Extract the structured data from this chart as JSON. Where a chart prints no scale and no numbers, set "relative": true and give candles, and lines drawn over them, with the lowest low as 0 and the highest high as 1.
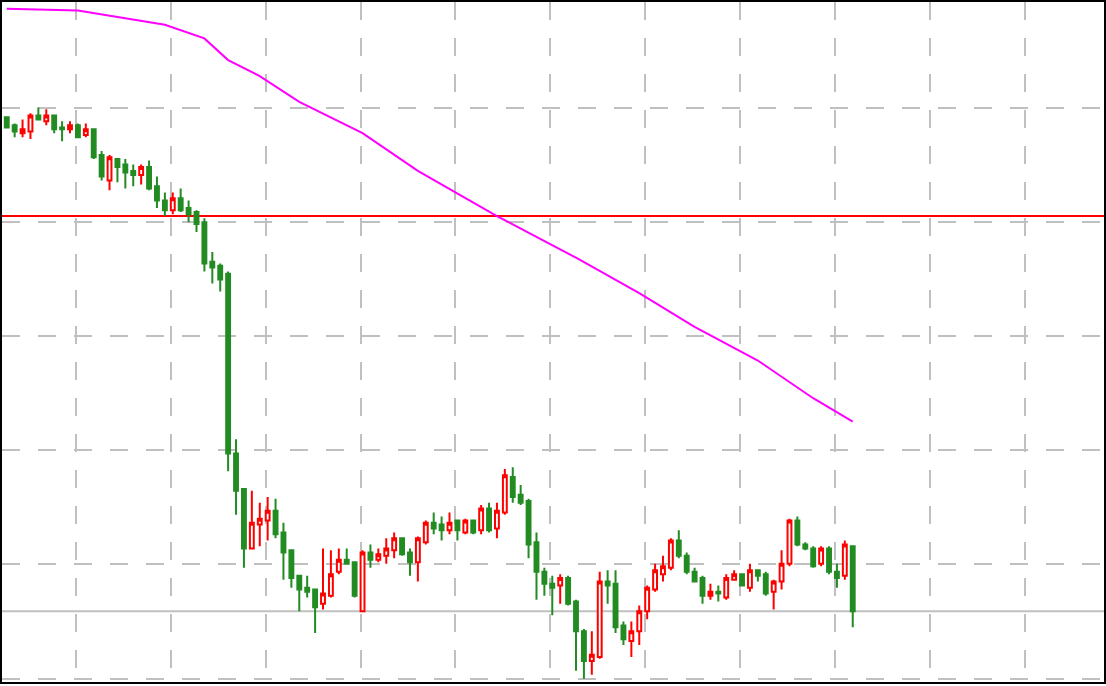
{
  "chart_data": {
    "type": "candlestick",
    "relative": true,
    "grid": true,
    "categories": [
      null,
      null,
      null,
      null,
      null,
      null,
      null,
      null,
      null,
      null,
      null,
      null,
      null,
      null,
      null,
      null,
      null,
      null,
      null,
      null,
      null,
      null,
      null,
      null,
      null,
      null,
      null,
      null,
      null,
      null,
      null,
      null,
      null,
      null,
      null,
      null,
      null,
      null,
      null,
      null,
      null,
      null,
      null,
      null,
      null,
      null,
      null,
      null,
      null,
      null,
      null,
      null,
      null,
      null,
      null,
      null,
      null,
      null,
      null,
      null,
      null,
      null,
      null,
      null,
      null,
      null,
      null,
      null,
      null,
      null,
      null,
      null,
      null,
      null,
      null,
      null,
      null,
      null,
      null,
      null,
      null,
      null,
      null,
      null,
      null,
      null,
      null,
      null,
      null,
      null,
      null,
      null,
      null,
      null,
      null,
      null,
      null,
      null,
      null,
      null,
      null,
      null,
      null,
      null,
      null,
      null,
      null,
      null
    ],
    "ohlc": [
      [
        0.983,
        0.983,
        0.965,
        0.965
      ],
      [
        0.969,
        0.972,
        0.948,
        0.958
      ],
      [
        0.955,
        0.979,
        0.948,
        0.962
      ],
      [
        0.958,
        0.99,
        0.945,
        0.986
      ],
      [
        0.986,
        1,
        0.979,
        0.979
      ],
      [
        0.976,
        0.997,
        0.969,
        0.986
      ],
      [
        0.986,
        0.986,
        0.955,
        0.962
      ],
      [
        0.965,
        0.976,
        0.941,
        0.962
      ],
      [
        0.962,
        0.976,
        0.955,
        0.969
      ],
      [
        0.969,
        0.972,
        0.948,
        0.948
      ],
      [
        0.952,
        0.972,
        0.948,
        0.962
      ],
      [
        0.962,
        0.962,
        0.91,
        0.913
      ],
      [
        0.917,
        0.924,
        0.872,
        0.879
      ],
      [
        0.872,
        0.917,
        0.855,
        0.913
      ],
      [
        0.91,
        0.91,
        0.869,
        0.896
      ],
      [
        0.9,
        0.91,
        0.858,
        0.886
      ],
      [
        0.889,
        0.9,
        0.862,
        0.882
      ],
      [
        0.882,
        0.9,
        0.865,
        0.896
      ],
      [
        0.896,
        0.907,
        0.855,
        0.858
      ],
      [
        0.862,
        0.879,
        0.824,
        0.837
      ],
      [
        0.837,
        0.851,
        0.81,
        0.82
      ],
      [
        0.82,
        0.851,
        0.813,
        0.841
      ],
      [
        0.841,
        0.858,
        0.817,
        0.82
      ],
      [
        0.824,
        0.837,
        0.799,
        0.813
      ],
      [
        0.817,
        0.82,
        0.782,
        0.796
      ],
      [
        0.799,
        0.806,
        0.713,
        0.727
      ],
      [
        0.73,
        0.747,
        0.692,
        0.72
      ],
      [
        0.723,
        0.727,
        0.678,
        0.699
      ],
      [
        0.709,
        0.713,
        0.363,
        0.394
      ],
      [
        0.394,
        0.419,
        0.287,
        0.329
      ],
      [
        0.332,
        0.332,
        0.194,
        0.228
      ],
      [
        0.228,
        0.329,
        0.228,
        0.273
      ],
      [
        0.27,
        0.308,
        0.232,
        0.28
      ],
      [
        0.277,
        0.318,
        0.242,
        0.294
      ],
      [
        0.294,
        0.315,
        0.246,
        0.253
      ],
      [
        0.256,
        0.273,
        0.173,
        0.221
      ],
      [
        0.225,
        0.225,
        0.159,
        0.176
      ],
      [
        0.18,
        0.18,
        0.118,
        0.156
      ],
      [
        0.159,
        0.18,
        0.142,
        0.152
      ],
      [
        0.156,
        0.156,
        0.08,
        0.125
      ],
      [
        0.131,
        0.228,
        0.121,
        0.149
      ],
      [
        0.145,
        0.225,
        0.142,
        0.183
      ],
      [
        0.187,
        0.228,
        0.183,
        0.208
      ],
      [
        0.208,
        0.228,
        0.201,
        0.201
      ],
      [
        0.204,
        0.204,
        0.142,
        0.145
      ],
      [
        0.118,
        0.225,
        0.118,
        0.221
      ],
      [
        0.221,
        0.235,
        0.194,
        0.208
      ],
      [
        0.208,
        0.228,
        0.204,
        0.218
      ],
      [
        0.215,
        0.246,
        0.201,
        0.228
      ],
      [
        0.225,
        0.256,
        0.211,
        0.246
      ],
      [
        0.246,
        0.246,
        0.215,
        0.218
      ],
      [
        0.221,
        0.228,
        0.18,
        0.204
      ],
      [
        0.204,
        0.249,
        0.17,
        0.246
      ],
      [
        0.239,
        0.277,
        0.235,
        0.273
      ],
      [
        0.273,
        0.291,
        0.253,
        0.263
      ],
      [
        0.27,
        0.284,
        0.242,
        0.26
      ],
      [
        0.26,
        0.291,
        0.253,
        0.273
      ],
      [
        0.277,
        0.277,
        0.242,
        0.26
      ],
      [
        0.256,
        0.28,
        0.253,
        0.277
      ],
      [
        0.277,
        0.277,
        0.253,
        0.256
      ],
      [
        0.26,
        0.304,
        0.253,
        0.298
      ],
      [
        0.298,
        0.308,
        0.256,
        0.26
      ],
      [
        0.263,
        0.308,
        0.246,
        0.294
      ],
      [
        0.291,
        0.367,
        0.287,
        0.356
      ],
      [
        0.353,
        0.37,
        0.308,
        0.318
      ],
      [
        0.322,
        0.339,
        0.304,
        0.308
      ],
      [
        0.311,
        0.315,
        0.211,
        0.235
      ],
      [
        0.239,
        0.256,
        0.138,
        0.187
      ],
      [
        0.187,
        0.194,
        0.145,
        0.166
      ],
      [
        0.166,
        0.18,
        0.111,
        0.159
      ],
      [
        0.163,
        0.183,
        0.131,
        0.176
      ],
      [
        0.176,
        0.18,
        0.128,
        0.131
      ],
      [
        0.135,
        0.138,
        0.014,
        0.083
      ],
      [
        0.083,
        0.087,
        0,
        0.031
      ],
      [
        0.031,
        0.083,
        0.007,
        0.042
      ],
      [
        0.038,
        0.187,
        0.035,
        0.17
      ],
      [
        0.17,
        0.19,
        0.131,
        0.163
      ],
      [
        0.166,
        0.19,
        0.08,
        0.09
      ],
      [
        0.093,
        0.1,
        0.059,
        0.069
      ],
      [
        0.066,
        0.1,
        0.038,
        0.083
      ],
      [
        0.083,
        0.128,
        0.059,
        0.118
      ],
      [
        0.118,
        0.163,
        0.104,
        0.159
      ],
      [
        0.156,
        0.201,
        0.152,
        0.19
      ],
      [
        0.183,
        0.215,
        0.17,
        0.197
      ],
      [
        0.194,
        0.246,
        0.19,
        0.242
      ],
      [
        0.242,
        0.26,
        0.211,
        0.215
      ],
      [
        0.215,
        0.221,
        0.183,
        0.187
      ],
      [
        0.187,
        0.194,
        0.17,
        0.17
      ],
      [
        0.176,
        0.18,
        0.131,
        0.145
      ],
      [
        0.145,
        0.166,
        0.138,
        0.152
      ],
      [
        0.152,
        0.163,
        0.135,
        0.149
      ],
      [
        0.142,
        0.183,
        0.138,
        0.176
      ],
      [
        0.173,
        0.19,
        0.173,
        0.183
      ],
      [
        0.183,
        0.183,
        0.163,
        0.163
      ],
      [
        0.159,
        0.201,
        0.152,
        0.19
      ],
      [
        0.19,
        0.19,
        0.17,
        0.18
      ],
      [
        0.183,
        0.187,
        0.145,
        0.149
      ],
      [
        0.152,
        0.173,
        0.121,
        0.17
      ],
      [
        0.17,
        0.225,
        0.156,
        0.201
      ],
      [
        0.201,
        0.28,
        0.197,
        0.277
      ],
      [
        0.277,
        0.284,
        0.232,
        0.235
      ],
      [
        0.235,
        0.239,
        0.225,
        0.228
      ],
      [
        0.228,
        0.232,
        0.194,
        0.197
      ],
      [
        0.201,
        0.232,
        0.197,
        0.228
      ],
      [
        0.228,
        0.232,
        0.183,
        0.187
      ],
      [
        0.187,
        0.201,
        0.159,
        0.176
      ],
      [
        0.18,
        0.242,
        0.173,
        0.235
      ],
      [
        0.232,
        0.232,
        0.09,
        0.118
      ]
    ],
    "colors": [
      "#228b22",
      "#228b22",
      "#ff0000",
      "#ff0000",
      "#228b22",
      "#ff0000",
      "#228b22",
      "#228b22",
      "#ff0000",
      "#228b22",
      "#ff0000",
      "#228b22",
      "#228b22",
      "#ff0000",
      "#228b22",
      "#228b22",
      "#228b22",
      "#ff0000",
      "#228b22",
      "#228b22",
      "#228b22",
      "#ff0000",
      "#228b22",
      "#228b22",
      "#228b22",
      "#228b22",
      "#228b22",
      "#228b22",
      "#228b22",
      "#228b22",
      "#228b22",
      "#ff0000",
      "#ff0000",
      "#ff0000",
      "#228b22",
      "#228b22",
      "#228b22",
      "#228b22",
      "#228b22",
      "#228b22",
      "#ff0000",
      "#ff0000",
      "#ff0000",
      "#228b22",
      "#228b22",
      "#ff0000",
      "#228b22",
      "#ff0000",
      "#ff0000",
      "#ff0000",
      "#228b22",
      "#228b22",
      "#ff0000",
      "#ff0000",
      "#228b22",
      "#228b22",
      "#ff0000",
      "#228b22",
      "#ff0000",
      "#228b22",
      "#ff0000",
      "#228b22",
      "#ff0000",
      "#ff0000",
      "#228b22",
      "#228b22",
      "#228b22",
      "#228b22",
      "#228b22",
      "#228b22",
      "#ff0000",
      "#228b22",
      "#228b22",
      "#228b22",
      "#ff0000",
      "#ff0000",
      "#228b22",
      "#228b22",
      "#228b22",
      "#ff0000",
      "#ff0000",
      "#ff0000",
      "#ff0000",
      "#ff0000",
      "#ff0000",
      "#228b22",
      "#228b22",
      "#228b22",
      "#228b22",
      "#ff0000",
      "#228b22",
      "#ff0000",
      "#ff0000",
      "#228b22",
      "#ff0000",
      "#228b22",
      "#228b22",
      "#ff0000",
      "#ff0000",
      "#ff0000",
      "#228b22",
      "#228b22",
      "#228b22",
      "#ff0000",
      "#228b22",
      "#228b22",
      "#ff0000",
      "#228b22"
    ],
    "series": [
      {
        "type": "line",
        "color": "#ff00ff",
        "values": [
          1.173,
          null,
          null,
          null,
          null,
          null,
          null,
          null,
          null,
          1.17,
          null,
          null,
          null,
          null,
          null,
          null,
          null,
          null,
          null,
          null,
          1.145,
          null,
          null,
          null,
          null,
          1.121,
          null,
          null,
          1.083,
          null,
          null,
          null,
          1.055,
          null,
          null,
          null,
          null,
          1.01,
          null,
          null,
          null,
          null,
          null,
          null,
          null,
          0.955,
          null,
          null,
          null,
          null,
          null,
          null,
          0.889,
          null,
          null,
          null,
          null,
          null,
          null,
          null,
          null,
          null,
          0.81,
          null,
          null,
          null,
          null,
          null,
          null,
          null,
          null,
          null,
          0.737,
          null,
          null,
          null,
          null,
          null,
          null,
          null,
          0.675,
          null,
          null,
          null,
          null,
          null,
          null,
          0.616,
          null,
          null,
          null,
          null,
          null,
          null,
          null,
          0.557,
          null,
          null,
          null,
          null,
          null,
          null,
          0.491,
          null,
          null,
          null,
          null,
          0.45
        ]
      }
    ],
    "ref_lines": [
      {
        "axis": "y",
        "value": 0.81,
        "color": "#ff0000"
      },
      {
        "axis": "y",
        "value": 0.118,
        "color": "#c0c0c0"
      }
    ]
  }
}
